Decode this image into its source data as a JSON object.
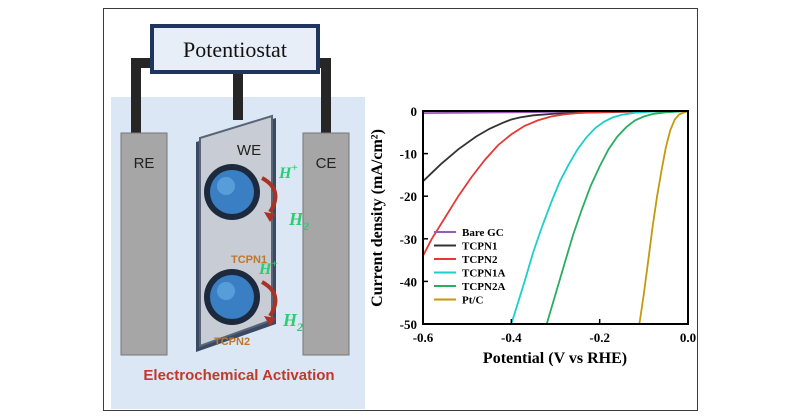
{
  "scheme": {
    "potentiostat_label": "Potentiostat",
    "re_label": "RE",
    "we_label": "WE",
    "ce_label": "CE",
    "proton_label": "H",
    "proton_charge": "+",
    "hydrogen_label": "H",
    "hydrogen_subscript": "2",
    "catalyst1_label": "TCPN1",
    "catalyst2_label": "TCPN2",
    "caption": "Electrochemical Activation"
  },
  "colors": {
    "tank": "#dbe7f4",
    "electrode": "#a6a6a6",
    "wire": "#262626",
    "potentiostat_fill": "#e8eef8",
    "potentiostat_border": "#1f3560",
    "caption": "#c0392b",
    "arrow": "#a93226",
    "green_text": "#2ecc71",
    "orange_text": "#c0772a"
  },
  "chart_data": {
    "type": "line",
    "title": "",
    "xlabel": "Potential (V vs RHE)",
    "ylabel": "Current density (mA/cm²)",
    "xlim": [
      -0.6,
      0.0
    ],
    "ylim": [
      -50,
      0
    ],
    "xticks": [
      -0.6,
      -0.4,
      -0.2,
      0.0
    ],
    "xtick_labels": [
      "-0.6",
      "-0.4",
      "-0.2",
      "0.0"
    ],
    "yticks": [
      0,
      -10,
      -20,
      -30,
      -40,
      -50
    ],
    "ytick_labels": [
      "0",
      "-10",
      "-20",
      "-30",
      "-40",
      "-50"
    ],
    "legend_position": "lower-left",
    "series": [
      {
        "name": "Bare GC",
        "color": "#9b59b6",
        "x": [
          -0.6,
          -0.5,
          -0.4,
          -0.3,
          -0.2,
          -0.1,
          0.0
        ],
        "y": [
          -0.5,
          -0.4,
          -0.3,
          -0.2,
          -0.15,
          -0.1,
          0.0
        ]
      },
      {
        "name": "TCPN1",
        "color": "#333333",
        "x": [
          -0.6,
          -0.56,
          -0.52,
          -0.48,
          -0.45,
          -0.42,
          -0.4,
          -0.38,
          -0.35,
          -0.3,
          -0.25,
          -0.2,
          -0.1,
          0.0
        ],
        "y": [
          -16.5,
          -12.5,
          -9.0,
          -6.0,
          -4.2,
          -2.8,
          -2.0,
          -1.5,
          -1.0,
          -0.6,
          -0.4,
          -0.3,
          -0.1,
          0.0
        ]
      },
      {
        "name": "TCPN2",
        "color": "#e53935",
        "x": [
          -0.6,
          -0.58,
          -0.55,
          -0.52,
          -0.49,
          -0.46,
          -0.43,
          -0.4,
          -0.37,
          -0.34,
          -0.31,
          -0.28,
          -0.25,
          -0.2,
          -0.1,
          0.0
        ],
        "y": [
          -34.0,
          -30.0,
          -25.0,
          -20.0,
          -15.5,
          -11.5,
          -8.0,
          -5.5,
          -3.5,
          -2.2,
          -1.3,
          -0.8,
          -0.5,
          -0.25,
          -0.1,
          0.0
        ]
      },
      {
        "name": "TCPN1A",
        "color": "#1ccfc9",
        "x": [
          -0.4,
          -0.385,
          -0.37,
          -0.35,
          -0.33,
          -0.31,
          -0.29,
          -0.27,
          -0.25,
          -0.23,
          -0.21,
          -0.19,
          -0.17,
          -0.15,
          -0.12,
          -0.08,
          0.0
        ],
        "y": [
          -50,
          -45,
          -40,
          -33,
          -27,
          -21.5,
          -16.5,
          -12.5,
          -9.0,
          -6.2,
          -4.0,
          -2.5,
          -1.5,
          -0.9,
          -0.4,
          -0.15,
          0.0
        ]
      },
      {
        "name": "TCPN2A",
        "color": "#27ae60",
        "x": [
          -0.32,
          -0.3,
          -0.28,
          -0.26,
          -0.24,
          -0.22,
          -0.2,
          -0.18,
          -0.16,
          -0.14,
          -0.12,
          -0.1,
          -0.08,
          -0.05,
          0.0
        ],
        "y": [
          -50,
          -43,
          -36,
          -29,
          -23,
          -17.5,
          -13,
          -9.0,
          -6.0,
          -3.8,
          -2.2,
          -1.3,
          -0.7,
          -0.3,
          0.0
        ]
      },
      {
        "name": "Pt/C",
        "color": "#c49a0a",
        "x": [
          -0.11,
          -0.1,
          -0.09,
          -0.08,
          -0.07,
          -0.06,
          -0.05,
          -0.04,
          -0.03,
          -0.02,
          0.0
        ],
        "y": [
          -50,
          -43,
          -35,
          -27,
          -20,
          -14,
          -8.5,
          -4.5,
          -2.0,
          -0.8,
          0.0
        ]
      }
    ]
  }
}
